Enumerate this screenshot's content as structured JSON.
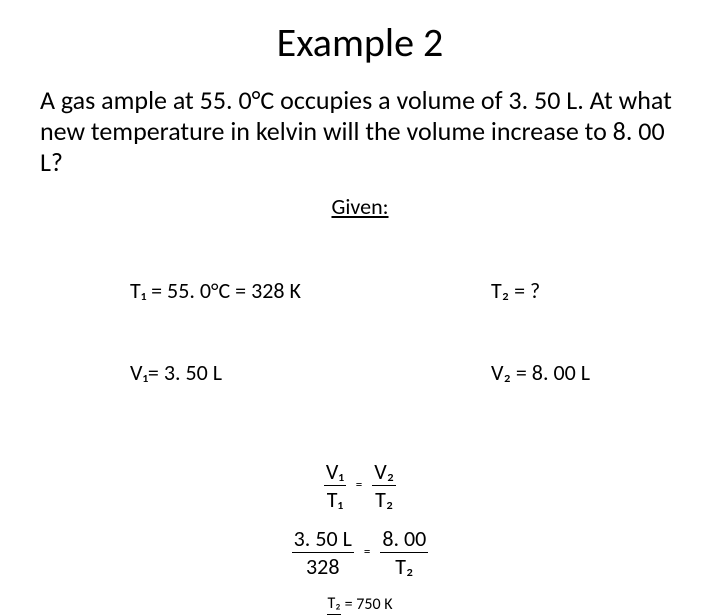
{
  "title": "Example 2",
  "problem": "A gas ample at 55. 0°C occupies a volume of 3. 50 L. At what new temperature in kelvin will the volume increase to 8. 00 L?",
  "given_heading": "Given:",
  "left_col": {
    "t1": "T₁ = 55. 0°C = 328 K",
    "v1": "V₁= 3. 50 L"
  },
  "right_col": {
    "t2": "T₂ = ?",
    "v2": "V₂ = 8. 00 L"
  },
  "formula": {
    "left_num": "V₁",
    "left_den": "T₁",
    "right_num": "V₂",
    "right_den": "T₂",
    "eq": "="
  },
  "substitution": {
    "left_num": "3. 50 L",
    "left_den": "328",
    "right_num": "8. 00",
    "right_den": "T₂",
    "eq": "="
  },
  "answer": {
    "var": "T₂",
    "text": "= 750 K"
  }
}
